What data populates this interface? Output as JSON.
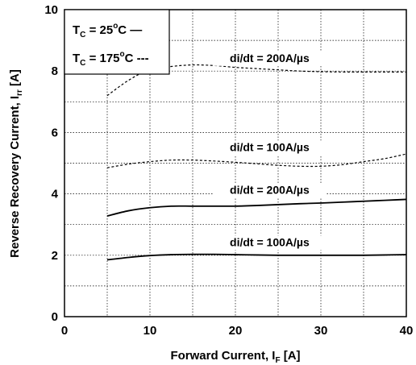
{
  "chart_data": {
    "type": "line",
    "title": "",
    "xlabel": "Forward Current, I",
    "xlabel_sub": "F",
    "xlabel_suffix": " [A]",
    "ylabel": "Reverse Recovery Current, I",
    "ylabel_sub": "rr",
    "ylabel_suffix": " [A]",
    "xlim": [
      0,
      40
    ],
    "ylim": [
      0,
      10
    ],
    "x_ticks": [
      0,
      10,
      20,
      30,
      40
    ],
    "y_ticks": [
      0,
      2,
      4,
      6,
      8,
      10
    ],
    "grid": true,
    "legend": {
      "position": "top-left",
      "entries": [
        {
          "prefix": "T",
          "sub": "C",
          "middle": " = 25",
          "sup": "o",
          "unit": "C",
          "marker": " —",
          "style": "solid"
        },
        {
          "prefix": "T",
          "sub": "C",
          "middle": " = 175",
          "sup": "o",
          "unit": "C",
          "marker": " ---",
          "style": "dashed"
        }
      ]
    },
    "series": [
      {
        "label": "di/dt = 200A/µs",
        "style": "dashed",
        "label_at": [
          24,
          8.3
        ],
        "x": [
          5,
          7.5,
          10,
          12.5,
          15,
          17.5,
          20,
          22.5,
          25,
          27.5,
          30,
          32.5,
          35,
          37.5,
          40
        ],
        "y": [
          7.2,
          7.7,
          8.05,
          8.15,
          8.2,
          8.18,
          8.12,
          8.08,
          8.04,
          8.0,
          7.98,
          7.97,
          7.97,
          7.97,
          7.97
        ]
      },
      {
        "label": "di/dt = 100A/µs",
        "style": "dashed",
        "label_at": [
          24,
          5.4
        ],
        "x": [
          5,
          7.5,
          10,
          12.5,
          15,
          17.5,
          20,
          22.5,
          25,
          27.5,
          30,
          32.5,
          35,
          37.5,
          40
        ],
        "y": [
          4.85,
          4.97,
          5.05,
          5.1,
          5.1,
          5.07,
          5.03,
          4.98,
          4.93,
          4.9,
          4.9,
          4.95,
          5.05,
          5.15,
          5.3
        ]
      },
      {
        "label": "di/dt = 200A/µs",
        "style": "solid",
        "label_at": [
          24,
          4.0
        ],
        "x": [
          5,
          7.5,
          10,
          12.5,
          15,
          17.5,
          20,
          22.5,
          25,
          27.5,
          30,
          32.5,
          35,
          37.5,
          40
        ],
        "y": [
          3.28,
          3.45,
          3.55,
          3.6,
          3.6,
          3.6,
          3.6,
          3.62,
          3.65,
          3.68,
          3.7,
          3.73,
          3.76,
          3.79,
          3.82
        ]
      },
      {
        "label": "di/dt = 100A/µs",
        "style": "solid",
        "label_at": [
          24,
          2.3
        ],
        "x": [
          5,
          7.5,
          10,
          12.5,
          15,
          17.5,
          20,
          22.5,
          25,
          27.5,
          30,
          32.5,
          35,
          37.5,
          40
        ],
        "y": [
          1.85,
          1.93,
          1.99,
          2.02,
          2.03,
          2.03,
          2.02,
          2.01,
          2.0,
          2.0,
          2.0,
          2.0,
          2.0,
          2.01,
          2.02
        ]
      }
    ]
  }
}
